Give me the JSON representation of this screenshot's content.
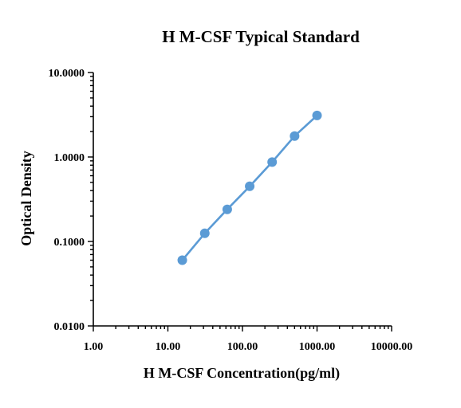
{
  "chart_data": {
    "type": "line",
    "title": "H M-CSF  Typical Standard",
    "xlabel": "H M-CSF Concentration(pg/ml)",
    "ylabel": "Optical Density",
    "x_scale": "log",
    "y_scale": "log",
    "xlim": [
      1,
      10000
    ],
    "ylim": [
      0.01,
      10
    ],
    "x_ticks": [
      "1.00",
      "10.00",
      "100.00",
      "1000.00",
      "10000.00"
    ],
    "y_ticks": [
      "0.0100",
      "0.1000",
      "1.0000",
      "10.0000"
    ],
    "grid": false,
    "legend": "none",
    "series": [
      {
        "color": "#5b9bd5",
        "x": [
          15.6,
          31.25,
          62.5,
          125,
          250,
          500,
          1000
        ],
        "values": [
          0.06,
          0.125,
          0.24,
          0.45,
          0.87,
          1.77,
          3.1
        ]
      }
    ]
  }
}
